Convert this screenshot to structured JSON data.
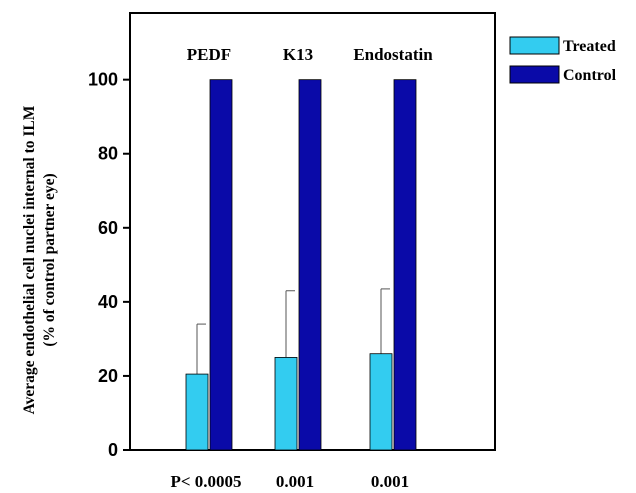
{
  "chart_data": {
    "type": "bar",
    "categories": [
      "PEDF",
      "K13",
      "Endostatin"
    ],
    "p_values": [
      "P< 0.0005",
      "0.001",
      "0.001"
    ],
    "series": [
      {
        "name": "Treated",
        "values": [
          20.5,
          25,
          26
        ],
        "error": [
          13.5,
          18,
          17.5
        ],
        "color": "#33ccf0"
      },
      {
        "name": "Control",
        "values": [
          100,
          100,
          100
        ],
        "error": [
          0,
          0,
          0
        ],
        "color": "#0a0aa8"
      }
    ],
    "ylabel": [
      "Average endothelial cell nuclei internal to ILM",
      "(% of control partner eye)"
    ],
    "ylim": [
      0,
      118
    ],
    "yticks": [
      "0",
      "20",
      "40",
      "60",
      "80",
      "100"
    ],
    "legend_position": "top-right-outside",
    "grid": false
  }
}
